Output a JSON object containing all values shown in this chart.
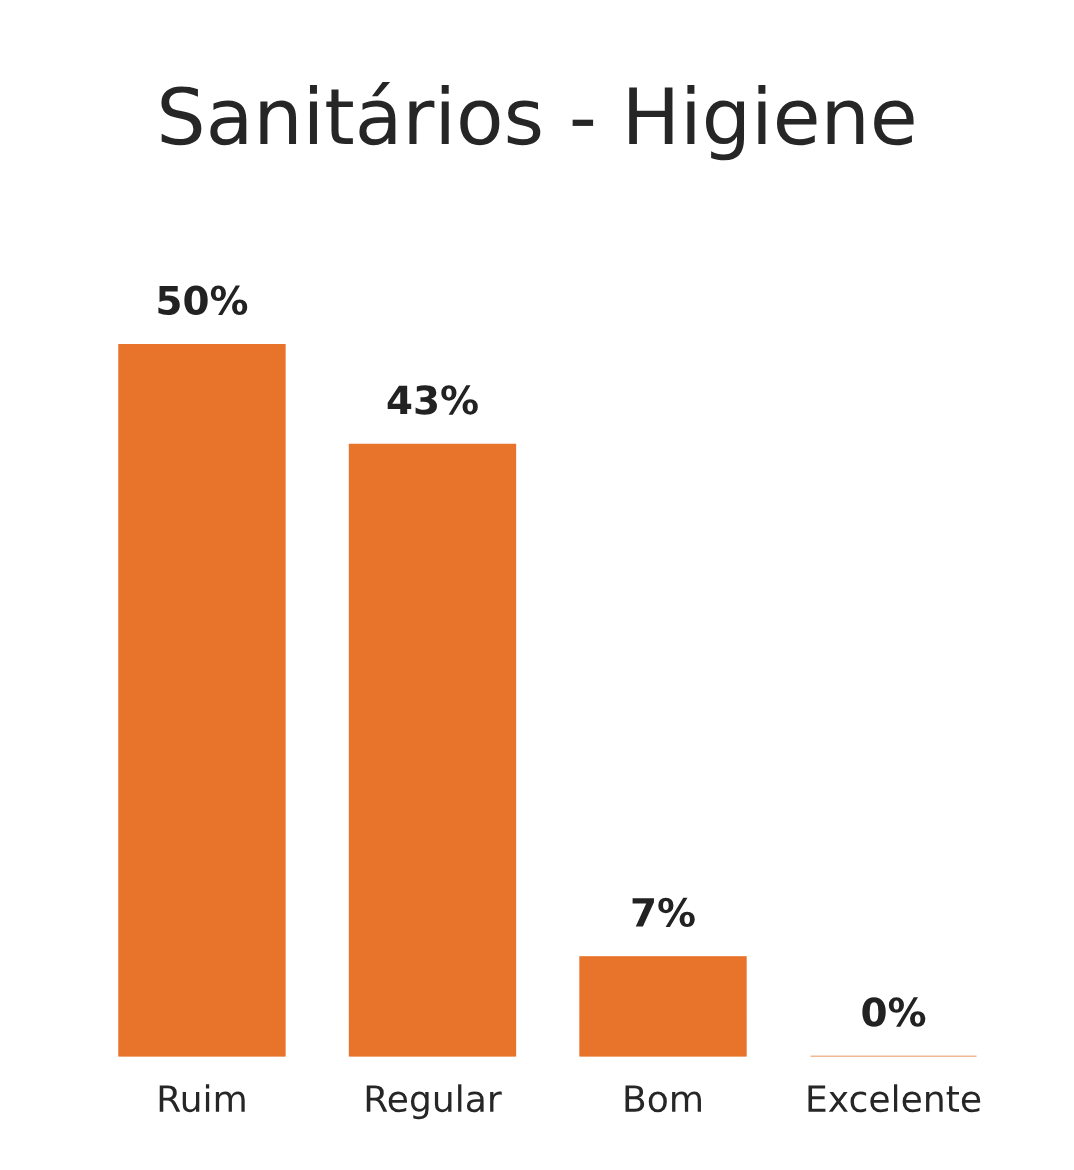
{
  "chart_data": {
    "type": "bar",
    "title": "Sanitários - Higiene",
    "categories": [
      "Ruim",
      "Regular",
      "Bom",
      "Excelente"
    ],
    "values": [
      50,
      43,
      7,
      0
    ],
    "value_labels": [
      "50%",
      "43%",
      "7%",
      "0%"
    ],
    "color": "#e8732b"
  }
}
